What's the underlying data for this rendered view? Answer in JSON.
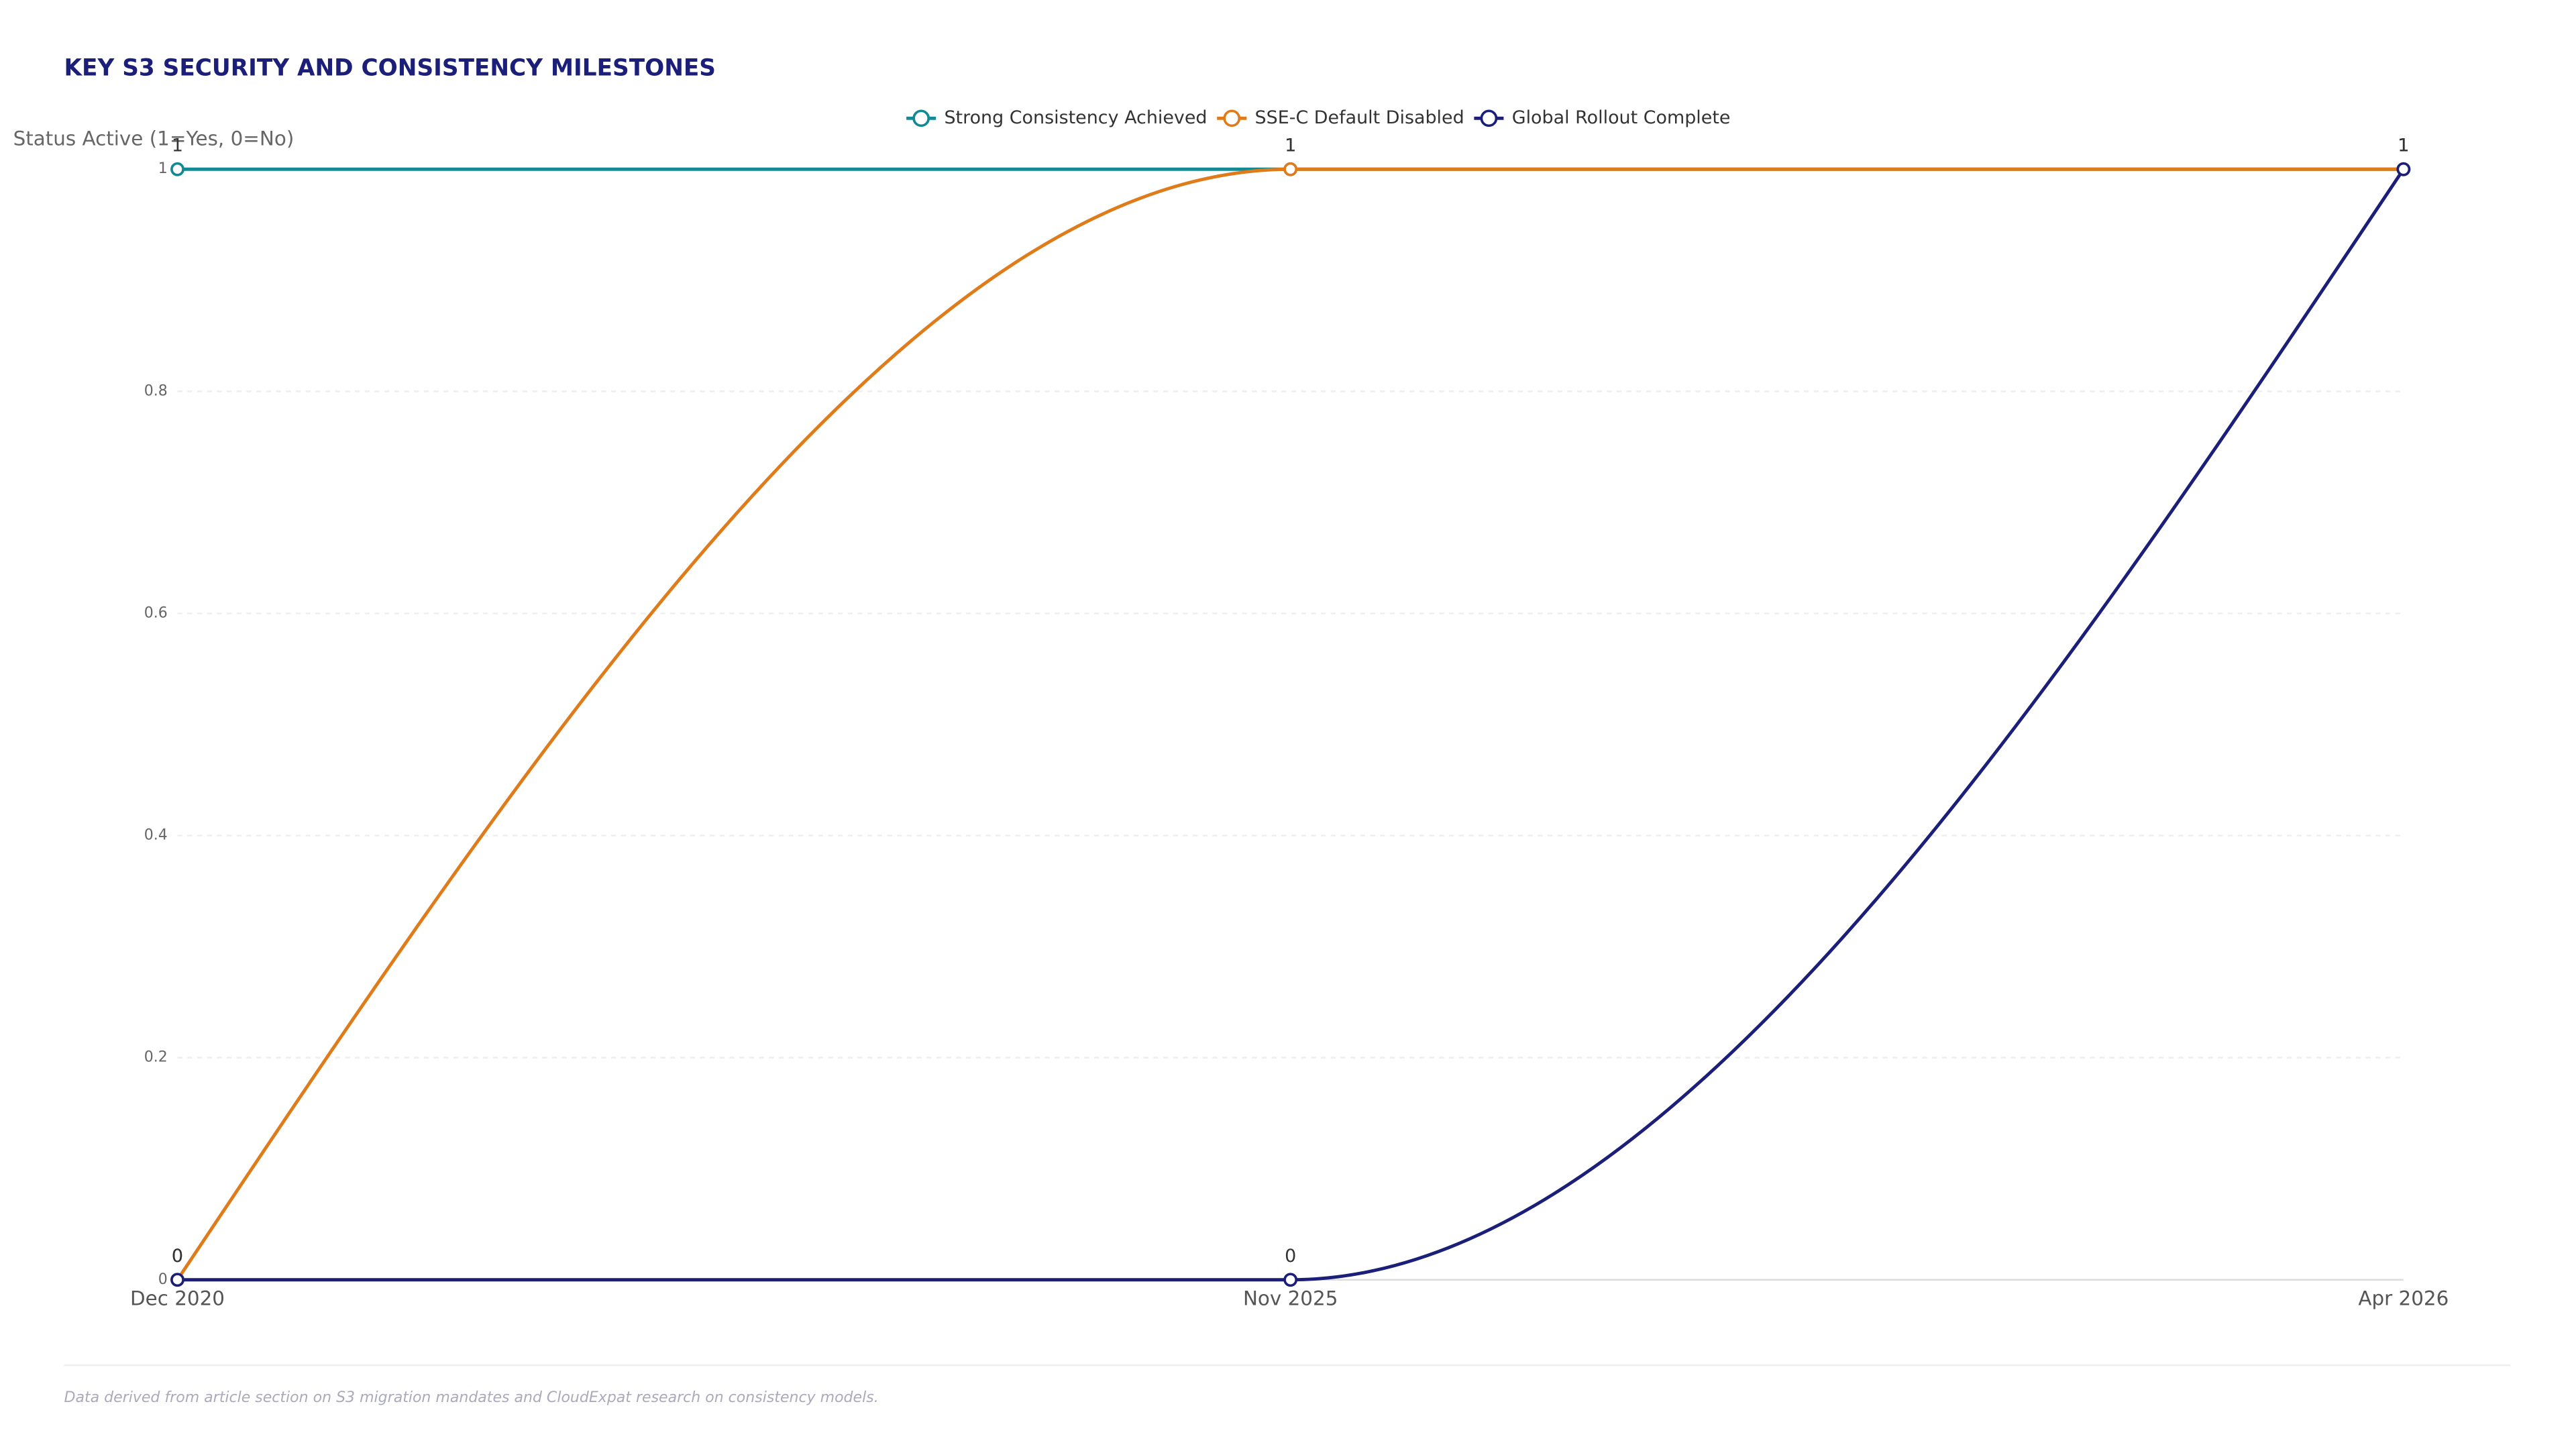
{
  "chart_data": {
    "type": "line",
    "title": "KEY S3 SECURITY AND CONSISTENCY MILESTONES",
    "y_label": "Status Active (1=Yes, 0=No)",
    "categories": [
      "Dec 2020",
      "Nov 2025",
      "Apr 2026"
    ],
    "series": [
      {
        "name": "Strong Consistency Achieved",
        "color": "#138a93",
        "values": [
          1,
          1,
          1
        ]
      },
      {
        "name": "SSE-C Default Disabled",
        "color": "#e07b1a",
        "values": [
          0,
          1,
          1
        ]
      },
      {
        "name": "Global Rollout Complete",
        "color": "#1b1f7a",
        "values": [
          0,
          0,
          1
        ]
      }
    ],
    "ylim": [
      0,
      1
    ],
    "yticks": [
      0,
      0.2,
      0.4,
      0.6,
      0.8,
      1
    ],
    "grid": true,
    "legend": "top",
    "note": "Data derived from article section on S3 migration mandates and CloudExpat research on consistency models."
  }
}
